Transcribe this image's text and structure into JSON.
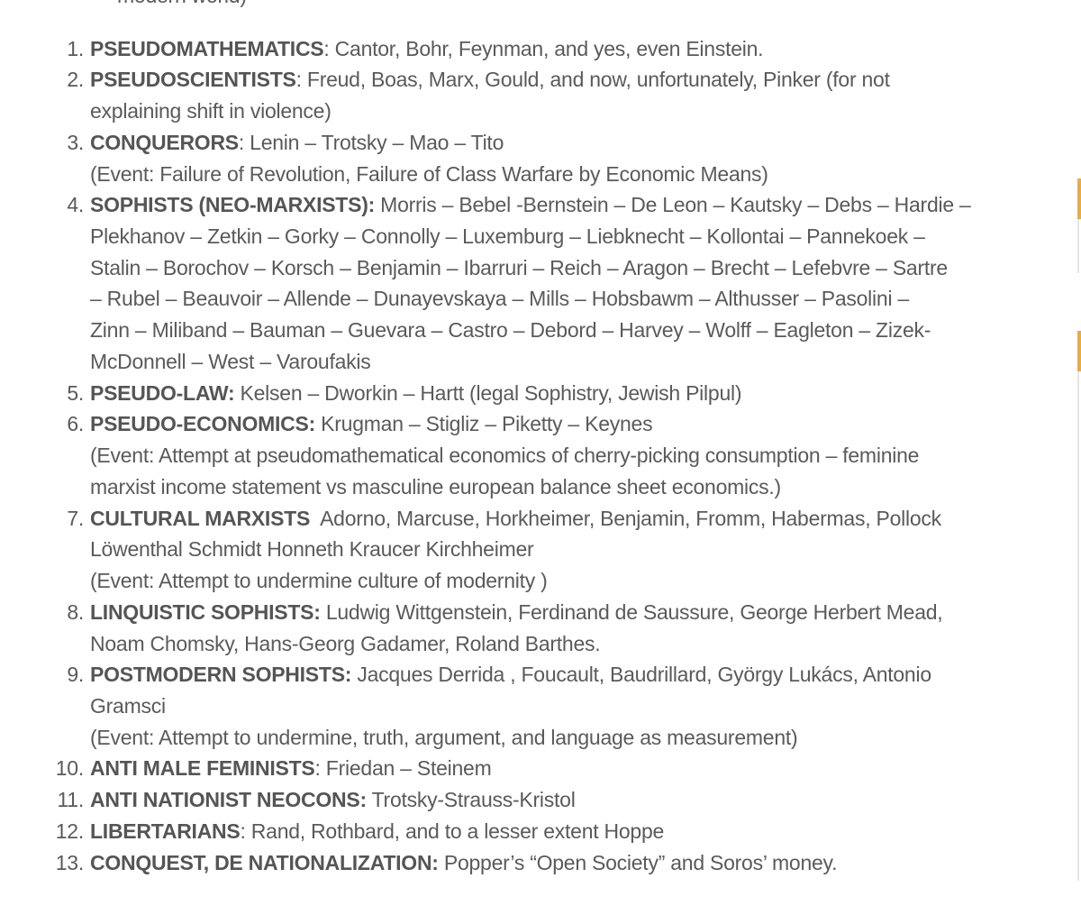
{
  "partial_top_text": "modern world)",
  "accent_color": "#f2a93b",
  "items": [
    {
      "num": "1.",
      "label": "PSEUDOMATHEMATICS",
      "first": ": Cantor, Bohr, Feynman, and yes, even Einstein.",
      "more": []
    },
    {
      "num": "2.",
      "label": "PSEUDOSCIENTISTS",
      "first": ": Freud, Boas, Marx, Gould, and now, unfortunately, Pinker (for not",
      "more": [
        "explaining shift in violence)"
      ]
    },
    {
      "num": "3.",
      "label": "CONQUERORS",
      "first": ": Lenin – Trotsky – Mao – Tito",
      "more": [
        "(Event: Failure of Revolution, Failure of Class Warfare by Economic Means)"
      ]
    },
    {
      "num": "4.",
      "label": "SOPHISTS (NEO-MARXISTS):",
      "first": " Morris – Bebel -Bernstein – De Leon – Kautsky – Debs – Hardie –",
      "more": [
        "Plekhanov – Zetkin – Gorky – Connolly – Luxemburg – Liebknecht – Kollontai – Pannekoek –",
        "Stalin – Borochov – Korsch – Benjamin – Ibarruri – Reich – Aragon – Brecht – Lefebvre – Sartre",
        "– Rubel – Beauvoir – Allende – Dunayevskaya – Mills – Hobsbawm – Althusser – Pasolini –",
        "Zinn – Miliband – Bauman – Guevara – Castro – Debord – Harvey – Wolff – Eagleton – Zizek-",
        "McDonnell – West – Varoufakis"
      ]
    },
    {
      "num": "5.",
      "label": "PSEUDO-LAW:",
      "first": " Kelsen – Dworkin – Hartt (legal Sophistry, Jewish Pilpul)",
      "more": []
    },
    {
      "num": "6.",
      "label": "PSEUDO-ECONOMICS:",
      "first": " Krugman – Stigliz – Piketty – Keynes",
      "more": [
        "(Event: Attempt at pseudomathematical economics of cherry-picking consumption – feminine",
        "marxist income statement vs masculine european balance sheet economics.)"
      ]
    },
    {
      "num": "7.",
      "label": "CULTURAL MARXISTS",
      "first": "  Adorno, Marcuse, Horkheimer, Benjamin, Fromm, Habermas, Pollock",
      "more": [
        "Löwenthal Schmidt Honneth Kraucer Kirchheimer",
        "(Event: Attempt to undermine culture of modernity )"
      ]
    },
    {
      "num": "8.",
      "label": "LINQUISTIC SOPHISTS:",
      "first": " Ludwig Wittgenstein, Ferdinand de Saussure, George Herbert Mead,",
      "more": [
        "Noam Chomsky, Hans-Georg Gadamer, Roland Barthes."
      ]
    },
    {
      "num": "9.",
      "label": "POSTMODERN SOPHISTS:",
      "first": " Jacques Derrida , Foucault, Baudrillard, György Lukács, Antonio",
      "more": [
        "Gramsci",
        "(Event: Attempt to undermine, truth, argument, and language as measurement)"
      ]
    },
    {
      "num": "10.",
      "label": "ANTI MALE FEMINISTS",
      "first": ": Friedan – Steinem",
      "more": []
    },
    {
      "num": "11.",
      "label": "ANTI NATIONIST NEOCONS:",
      "first": " Trotsky-Strauss-Kristol",
      "more": []
    },
    {
      "num": "12.",
      "label": "LIBERTARIANS",
      "first": ": Rand, Rothbard, and to a lesser extent Hoppe",
      "more": []
    },
    {
      "num": "13.",
      "label": "CONQUEST, DE NATIONALIZATION:",
      "first": " Popper’s “Open Society” and Soros’ money.",
      "more": []
    }
  ]
}
